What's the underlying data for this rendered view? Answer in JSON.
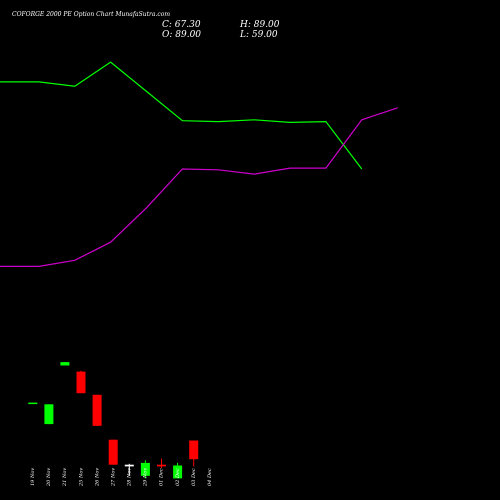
{
  "header": {
    "title": "COFORGE 2000  PE Option  Chart MunafaSutra.com",
    "close": "C: 67.30",
    "open": "O: 89.00",
    "high": "H: 89.00",
    "low": "L: 59.00"
  },
  "colors": {
    "background": "#000000",
    "up_candle": "#00ff00",
    "down_candle": "#ff0000",
    "doji_candle": "#ffffff",
    "line_green": "#00ff00",
    "line_magenta": "#cc00cc",
    "text": "#ffffff"
  },
  "chart_data": {
    "type": "candlestick",
    "title": "COFORGE 2000  PE Option  Chart MunafaSutra.com",
    "categories": [
      "19 Nov",
      "20 Nov",
      "21 Nov",
      "25 Nov",
      "26 Nov",
      "27 Nov",
      "28 Nov",
      "29 Nov",
      "01 Dec",
      "02 Dec",
      "03 Dec",
      "04 Dec"
    ],
    "candles": [
      {
        "open": 133.0,
        "high": 133.0,
        "low": 133.0,
        "close": 133.0,
        "dir": "up"
      },
      {
        "open": 108.0,
        "high": 131.0,
        "low": 108.0,
        "close": 131.0,
        "dir": "up"
      },
      {
        "open": 176.0,
        "high": 180.0,
        "low": 176.0,
        "close": 180.0,
        "dir": "up"
      },
      {
        "open": 169.0,
        "high": 170.0,
        "low": 144.0,
        "close": 144.0,
        "dir": "down"
      },
      {
        "open": 142.0,
        "high": 142.0,
        "low": 106.0,
        "close": 106.0,
        "dir": "down"
      },
      {
        "open": 90.0,
        "high": 90.0,
        "low": 61.0,
        "close": 61.0,
        "dir": "down"
      },
      {
        "open": 59.0,
        "high": 62.0,
        "low": 48.0,
        "close": 61.0,
        "dir": "doji"
      },
      {
        "open": 48.0,
        "high": 66.0,
        "low": 45.0,
        "close": 63.0,
        "dir": "up"
      },
      {
        "open": 61.0,
        "high": 68.0,
        "low": 57.0,
        "close": 59.0,
        "dir": "down"
      },
      {
        "open": 45.0,
        "high": 63.0,
        "low": 45.0,
        "close": 60.0,
        "dir": "up"
      },
      {
        "open": 89.0,
        "high": 89.0,
        "low": 59.0,
        "close": 67.3,
        "dir": "down"
      }
    ],
    "candle_positions": [
      1,
      2,
      3,
      4,
      5,
      6,
      7,
      8,
      9,
      10,
      11
    ],
    "overlays": [
      {
        "color": "#00ff00",
        "values": [
          505,
          505,
          500,
          528,
          494,
          460,
          459,
          461,
          458,
          459,
          404
        ]
      },
      {
        "color": "#cc00cc",
        "values": [
          291,
          291,
          298,
          319,
          359,
          404,
          403,
          398,
          405,
          405,
          461,
          475
        ]
      }
    ],
    "ylim": [
      20,
      600
    ],
    "grid": false
  }
}
